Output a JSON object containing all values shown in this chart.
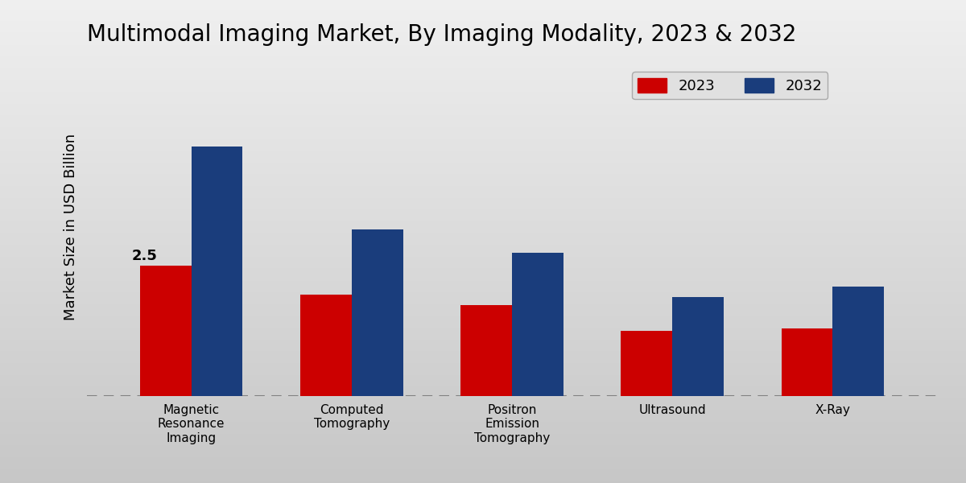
{
  "title": "Multimodal Imaging Market, By Imaging Modality, 2023 & 2032",
  "ylabel": "Market Size in USD Billion",
  "categories": [
    "Magnetic\nResonance\nImaging",
    "Computed\nTomography",
    "Positron\nEmission\nTomography",
    "Ultrasound",
    "X-Ray"
  ],
  "values_2023": [
    2.5,
    1.95,
    1.75,
    1.25,
    1.3
  ],
  "values_2032": [
    4.8,
    3.2,
    2.75,
    1.9,
    2.1
  ],
  "color_2023": "#cc0000",
  "color_2032": "#1a3d7c",
  "annotation_value": "2.5",
  "annotation_category_idx": 0,
  "bar_width": 0.32,
  "ylim": [
    0,
    6.5
  ],
  "bg_top": "#d8d8d8",
  "bg_bottom": "#f0f0f0",
  "legend_labels": [
    "2023",
    "2032"
  ],
  "title_fontsize": 20,
  "ylabel_fontsize": 13,
  "tick_fontsize": 11,
  "legend_fontsize": 13
}
